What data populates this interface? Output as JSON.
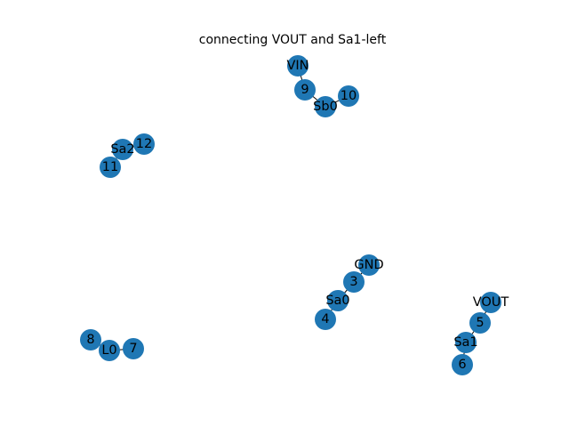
{
  "title": "connecting VOUT and Sa1-left",
  "colors": {
    "node": "#1f77b4",
    "edge": "#000000",
    "background": "#ffffff"
  },
  "nodes": [
    {
      "id": "VIN",
      "label": "VIN"
    },
    {
      "id": "9",
      "label": "9"
    },
    {
      "id": "Sb0",
      "label": "Sb0"
    },
    {
      "id": "10",
      "label": "10"
    },
    {
      "id": "12",
      "label": "12"
    },
    {
      "id": "Sa2",
      "label": "Sa2"
    },
    {
      "id": "11",
      "label": "11"
    },
    {
      "id": "GND",
      "label": "GND"
    },
    {
      "id": "3",
      "label": "3"
    },
    {
      "id": "Sa0",
      "label": "Sa0"
    },
    {
      "id": "4",
      "label": "4"
    },
    {
      "id": "VOUT",
      "label": "VOUT"
    },
    {
      "id": "5",
      "label": "5"
    },
    {
      "id": "Sa1",
      "label": "Sa1"
    },
    {
      "id": "6",
      "label": "6"
    },
    {
      "id": "8",
      "label": "8"
    },
    {
      "id": "L0",
      "label": "L0"
    },
    {
      "id": "7",
      "label": "7"
    }
  ],
  "edges": [
    [
      "VIN",
      "9"
    ],
    [
      "9",
      "Sb0"
    ],
    [
      "Sb0",
      "10"
    ],
    [
      "12",
      "Sa2"
    ],
    [
      "Sa2",
      "11"
    ],
    [
      "GND",
      "3"
    ],
    [
      "3",
      "Sa0"
    ],
    [
      "Sa0",
      "4"
    ],
    [
      "VOUT",
      "5"
    ],
    [
      "5",
      "Sa1"
    ],
    [
      "Sa1",
      "6"
    ],
    [
      "8",
      "L0"
    ],
    [
      "L0",
      "7"
    ]
  ]
}
